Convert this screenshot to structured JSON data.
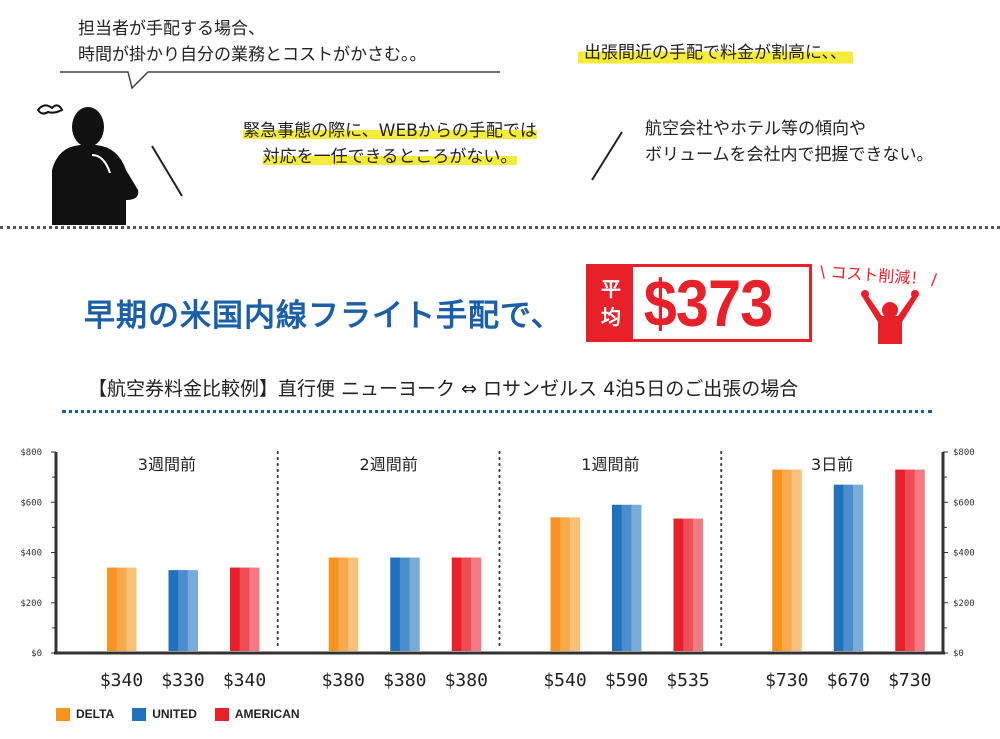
{
  "bubbles": {
    "speech_line1": "担当者が手配する場合、",
    "speech_line2": "時間が掛かり自分の業務とコストがかさむ。。",
    "right_top": "出張間近の手配で料金が割高に、、",
    "center_line1": "緊急事態の際に、WEBからの手配では",
    "center_line2": "対応を一任できるところがない。",
    "right_line1": "航空会社やホテル等の傾向や",
    "right_line2": "ボリュームを会社内で把握できない。"
  },
  "headline": "早期の米国内線フライト手配で、",
  "badge": {
    "label_1": "平",
    "label_2": "均",
    "value": "$373"
  },
  "cost_cut": "コスト削減！",
  "subtitle": "【航空券料金比較例】直行便 ニューヨーク ⇔ ロサンゼルス 4泊5日のご出張の場合",
  "colors": {
    "delta": "#f7931e",
    "united": "#1f73bd",
    "american": "#e8202a",
    "blue_text": "#1a5fa8"
  },
  "chart_data": {
    "type": "bar",
    "categories": [
      "3週間前",
      "2週間前",
      "1週間前",
      "3日前"
    ],
    "series": [
      {
        "name": "DELTA",
        "values": [
          340,
          380,
          540,
          730
        ],
        "labels": [
          "$340",
          "$380",
          "$540",
          "$730"
        ]
      },
      {
        "name": "UNITED",
        "values": [
          330,
          380,
          590,
          670
        ],
        "labels": [
          "$330",
          "$380",
          "$590",
          "$670"
        ]
      },
      {
        "name": "AMERICAN",
        "values": [
          340,
          380,
          535,
          730
        ],
        "labels": [
          "$340",
          "$380",
          "$535",
          "$730"
        ]
      }
    ],
    "yticks": [
      "$0",
      "$200",
      "$400",
      "$600",
      "$800"
    ],
    "ylim": [
      0,
      800
    ],
    "legend": "bottom-left"
  }
}
